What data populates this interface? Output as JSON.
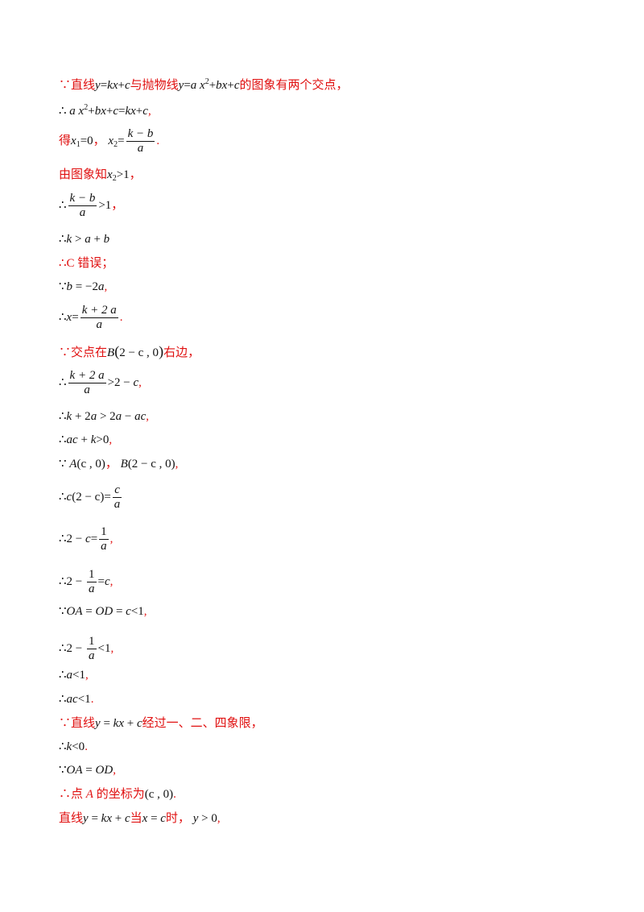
{
  "lines": {
    "l1": {
      "prefix": "∵直线",
      "y": "y",
      "eq": "=",
      "kx": "kx",
      "plus": "+",
      "c": "c",
      "mid": "与抛物线",
      "y2": "y",
      "eq2": "=",
      "a": "a",
      "x": "x",
      "sq": "2",
      "plus2": "+",
      "bx": "bx",
      "plus3": "+",
      "c2": "c",
      "suffix": "的图象有两个交点，"
    },
    "l2": {
      "prefix": "∴ ",
      "a": "a",
      "x": "x",
      "sq": "2",
      "p1": "+",
      "bx": "bx",
      "p2": "+",
      "c": "c",
      "eq": "=",
      "kx": "kx",
      "p3": "+",
      "c2": "c",
      "suffix": ","
    },
    "l3": {
      "prefix": "得",
      "x1": "x",
      "s1": "1",
      "eq1": "=0",
      "sep": "，  ",
      "x2": "x",
      "s2": "2",
      "eq2": "=",
      "num": "k − b",
      "den": "a",
      "suffix": "."
    },
    "l4": {
      "prefix": "由图象知",
      "x": "x",
      "s": "2",
      "gt": ">1",
      "suffix": "，"
    },
    "l5": {
      "prefix": "∴",
      "num": "k − b",
      "den": "a",
      "gt": ">1",
      "suffix": "，"
    },
    "l6": {
      "prefix": "∴",
      "k": "k",
      "gt": " > ",
      "a": "a",
      "p": " + ",
      "b": "b"
    },
    "l7": {
      "text": "∴C 错误；"
    },
    "l8": {
      "prefix": "∵",
      "b": "b",
      "eq": " = −2",
      "a": "a",
      "suffix": ","
    },
    "l9": {
      "prefix": "∴",
      "x": "x",
      "eq": "=",
      "num": "k + 2 a",
      "den": "a",
      "suffix": "."
    },
    "l10": {
      "prefix": "∵交点在",
      "B": "B",
      "lp": "(",
      "in": "2 − c , 0",
      "rp": ")",
      "suffix": "右边，"
    },
    "l11": {
      "prefix": "∴",
      "num": "k + 2 a",
      "den": "a",
      "gt": ">2 − ",
      "c": "c",
      "suffix": ","
    },
    "l12": {
      "prefix": "∴",
      "k": "k",
      "mid": " + 2",
      "a": "a",
      "gt": " > 2",
      "a2": "a",
      "minus": " − ",
      "ac": "ac",
      "suffix": ","
    },
    "l13": {
      "prefix": "∴",
      "ac": "ac",
      "p": " + ",
      "k": "k",
      "gt": ">0",
      "suffix": ","
    },
    "l14": {
      "prefix": "∵ ",
      "A": "A",
      "a_in": "(c , 0)",
      "sep": "， ",
      "B": "B",
      "b_in": "(2 − c , 0)",
      "suffix": ","
    },
    "l15": {
      "prefix": "∴",
      "c": "c",
      "in": "(2 − c)",
      "eq": "=",
      "num": "c",
      "den": "a"
    },
    "l16": {
      "prefix": "∴2 − ",
      "c": "c",
      "eq": "=",
      "num": "1",
      "den": "a",
      "suffix": ","
    },
    "l17": {
      "prefix": "∴2 − ",
      "num": "1",
      "den": "a",
      "eq": "=",
      "c": "c",
      "suffix": ","
    },
    "l18": {
      "prefix": "∵",
      "OA": "OA",
      "eq": " = ",
      "OD": "OD",
      "eq2": " = ",
      "c": "c",
      "lt": "<1",
      "suffix": ","
    },
    "l19": {
      "prefix": "∴2 − ",
      "num": "1",
      "den": "a",
      "lt": "<1",
      "suffix": ","
    },
    "l20": {
      "prefix": "∴",
      "a": "a",
      "lt": "<1",
      "suffix": ","
    },
    "l21": {
      "prefix": "∴",
      "ac": "ac",
      "lt": "<1",
      "suffix": "."
    },
    "l22": {
      "prefix": "∵直线",
      "y": "y",
      "eq": " = ",
      "kx": "kx",
      "p": " + ",
      "c": "c",
      "suffix": "经过一、二、四象限，"
    },
    "l23": {
      "prefix": "∴",
      "k": "k",
      "lt": "<0",
      "suffix": "."
    },
    "l24": {
      "prefix": "∵",
      "OA": "OA",
      "eq": " = ",
      "OD": "OD",
      "suffix": ","
    },
    "l25": {
      "prefix": "∴点 ",
      "A": "A",
      "mid": " 的坐标为",
      "in": "(c , 0)",
      "suffix": "."
    },
    "l26": {
      "prefix": "直线",
      "y": "y",
      "eq": " = ",
      "kx": "kx",
      "p": " + ",
      "c": "c",
      "mid": "当",
      "x": "x",
      "eq2": " = ",
      "c2": "c",
      "mid2": "时， ",
      "y2": "y",
      "gt": " > 0",
      "suffix": ","
    }
  }
}
